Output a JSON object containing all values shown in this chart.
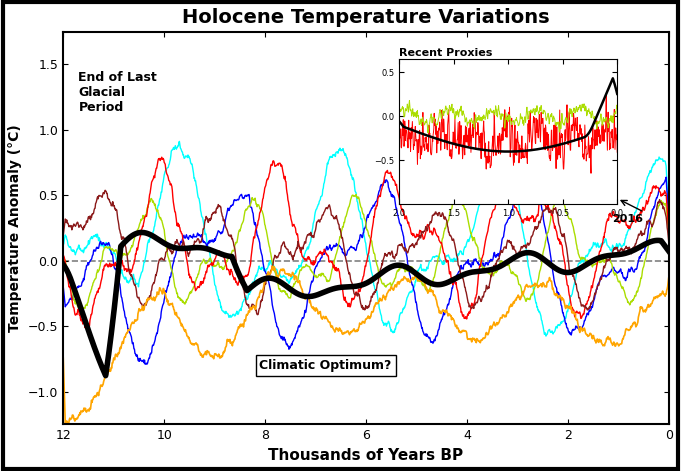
{
  "title": "Holocene Temperature Variations",
  "xlabel": "Thousands of Years BP",
  "ylabel": "Temperature Anomaly (°C)",
  "xlim": [
    12,
    0
  ],
  "ylim": [
    -1.25,
    1.75
  ],
  "yticks": [
    -1,
    -0.5,
    0,
    0.5,
    1,
    1.5
  ],
  "xticks": [
    12,
    10,
    8,
    6,
    4,
    2,
    0
  ],
  "dashed_y": 0.0,
  "annotation_glacial": "End of Last\nGlacial\nPeriod",
  "annotation_optimum": "Climatic Optimum?",
  "annotation_2016": "2016",
  "inset_title": "Recent Proxies",
  "background_color": "#ffffff",
  "border_color": "#000000",
  "figwidth": 6.81,
  "figheight": 4.71,
  "dpi": 100
}
